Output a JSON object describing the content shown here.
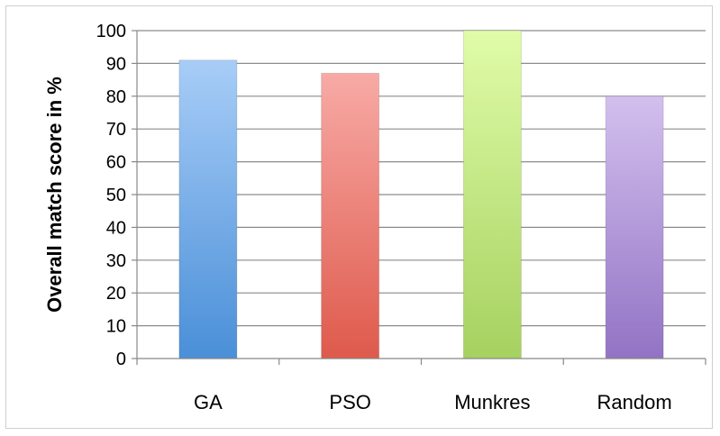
{
  "chart_data": {
    "type": "bar",
    "title": "",
    "xlabel": "",
    "ylabel": "Overall match score in %",
    "categories": [
      "GA",
      "PSO",
      "Munkres",
      "Random"
    ],
    "values": [
      91,
      87,
      100,
      80
    ],
    "ylim": [
      0,
      100
    ],
    "yticks": [
      0,
      10,
      20,
      30,
      40,
      50,
      60,
      70,
      80,
      90,
      100
    ],
    "grid": true,
    "legend": "none",
    "colors": {
      "GA": [
        "#a8cdf7",
        "#4a8fd8"
      ],
      "PSO": [
        "#f8aaa6",
        "#de5a4c"
      ],
      "Munkres": [
        "#e0fca8",
        "#a6d160"
      ],
      "Random": [
        "#d3c0ee",
        "#9273c4"
      ]
    },
    "grid_color": "#8c8c8c",
    "axis_color": "#888888"
  }
}
